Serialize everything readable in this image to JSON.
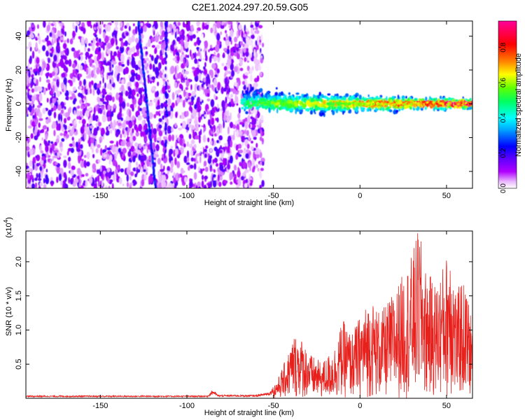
{
  "title": "C2E1.2024.297.20.59.G05",
  "chart_data": [
    {
      "type": "heatmap",
      "xlabel": "Height of straight line (km)",
      "ylabel": "Frequency (Hz)",
      "xlim": [
        -193,
        65
      ],
      "ylim": [
        -50,
        49
      ],
      "xticks": [
        -150,
        -100,
        -50,
        0,
        50
      ],
      "yticks": [
        -40,
        -20,
        0,
        20,
        40
      ],
      "xtick_labels": [
        "-150",
        "-100",
        "-50",
        "0",
        "50"
      ],
      "ytick_labels": [
        "-40",
        "-20",
        "0",
        "20",
        "40"
      ],
      "colorbar": {
        "label": "Normalized spectral amplitude",
        "range": [
          0,
          0.95
        ],
        "ticks": [
          0.0,
          0.2,
          0.4,
          0.6,
          0.8
        ],
        "tick_labels": [
          "0.0",
          "0.2",
          "0.4",
          "0.6",
          "0.8"
        ],
        "colormap": [
          "#ffffff",
          "#ff00ff",
          "#7a00ff",
          "#0000ff",
          "#00ffff",
          "#00ff00",
          "#ffff00",
          "#ff8000",
          "#ff0000",
          "#ff00ff"
        ]
      },
      "features": {
        "noise_region_km": [
          -193,
          -60
        ],
        "signal_start_km": -68,
        "signal_center_hz": 0,
        "diagonal_streak": {
          "x_start": -128,
          "y_start": 48,
          "x_end": -118,
          "y_end": -50
        },
        "streak_2": {
          "x": -112,
          "y_range": [
            -30,
            49
          ]
        }
      }
    },
    {
      "type": "line",
      "xlabel": "Height of straight line (km)",
      "ylabel": "SNR (10 * v/v)",
      "multiplier": "(x10",
      "multiplier_exp": "4",
      "xlim": [
        -193,
        65
      ],
      "ylim": [
        0,
        2.45
      ],
      "xticks": [
        -150,
        -100,
        -50,
        0,
        50
      ],
      "yticks": [
        0.5,
        1.0,
        1.5,
        2.0
      ],
      "xtick_labels": [
        "-150",
        "-100",
        "-50",
        "0",
        "50"
      ],
      "ytick_labels": [
        "0.5",
        "1.0",
        "1.5",
        "2.0"
      ],
      "series_color": "#e8201c",
      "envelope": [
        {
          "x": -193,
          "y": 0.04
        },
        {
          "x": -120,
          "y": 0.04
        },
        {
          "x": -88,
          "y": 0.04
        },
        {
          "x": -85,
          "y": 0.13
        },
        {
          "x": -82,
          "y": 0.05
        },
        {
          "x": -60,
          "y": 0.05
        },
        {
          "x": -52,
          "y": 0.1
        },
        {
          "x": -47,
          "y": 0.3
        },
        {
          "x": -42,
          "y": 0.6
        },
        {
          "x": -38,
          "y": 0.9
        },
        {
          "x": -34,
          "y": 0.85
        },
        {
          "x": -28,
          "y": 0.6
        },
        {
          "x": -22,
          "y": 0.5
        },
        {
          "x": -15,
          "y": 0.7
        },
        {
          "x": -10,
          "y": 1.1
        },
        {
          "x": -5,
          "y": 0.9
        },
        {
          "x": 0,
          "y": 1.15
        },
        {
          "x": 6,
          "y": 1.4
        },
        {
          "x": 12,
          "y": 1.2
        },
        {
          "x": 20,
          "y": 1.5
        },
        {
          "x": 26,
          "y": 1.8
        },
        {
          "x": 30,
          "y": 2.0
        },
        {
          "x": 34,
          "y": 2.4
        },
        {
          "x": 38,
          "y": 1.8
        },
        {
          "x": 44,
          "y": 1.6
        },
        {
          "x": 50,
          "y": 2.0
        },
        {
          "x": 52,
          "y": 2.35
        },
        {
          "x": 56,
          "y": 1.4
        },
        {
          "x": 58,
          "y": 1.7
        },
        {
          "x": 62,
          "y": 1.5
        },
        {
          "x": 65,
          "y": 1.0
        }
      ]
    }
  ]
}
